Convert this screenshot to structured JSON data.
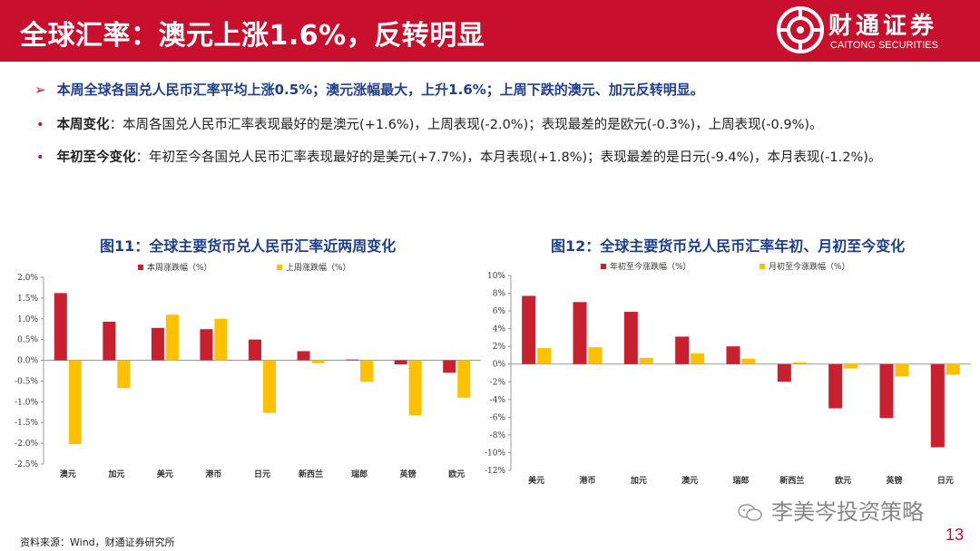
{
  "header": {
    "title": "全球汇率：澳元上涨1.6%，反转明显",
    "logo_cn": "财通证券",
    "logo_en": "CAITONG SECURITIES"
  },
  "summary": "本周全球各国兑人民币汇率平均上涨0.5%；澳元涨幅最大，上升1.6%；上周下跌的澳元、加元反转明显。",
  "bullets": [
    {
      "label": "本周变化",
      "text": "：本周各国兑人民币汇率表现最好的是澳元(+1.6%)，上周表现(-2.0%)；表现最差的是欧元(-0.3%)，上周表现(-0.9%)。"
    },
    {
      "label": "年初至今变化",
      "text": "：年初至今各国兑人民币汇率表现最好的是美元(+7.7%)，本月表现(+1.8%)；表现最差的是日元(-9.4%)，本月表现(-1.2%)。"
    }
  ],
  "colors": {
    "red": "#c8202e",
    "yellow": "#ffc000",
    "brand": "#c8102e",
    "title_blue": "#1f3e8c"
  },
  "chart_data": [
    {
      "type": "bar",
      "title": "图11：全球主要货币兑人民币汇率近两周变化",
      "categories": [
        "澳元",
        "加元",
        "美元",
        "港币",
        "日元",
        "新西兰",
        "瑞郎",
        "英镑",
        "欧元"
      ],
      "series": [
        {
          "name": "本周涨跌幅（%）",
          "values": [
            1.62,
            0.93,
            0.78,
            0.75,
            0.5,
            0.22,
            0.02,
            -0.1,
            -0.3
          ]
        },
        {
          "name": "上周涨跌幅（%）",
          "values": [
            -2.02,
            -0.67,
            1.1,
            1.0,
            -1.27,
            -0.07,
            -0.52,
            -1.33,
            -0.9
          ]
        }
      ],
      "ylim": [
        -2.5,
        2.0
      ],
      "yticks": [
        "2.0%",
        "1.5%",
        "1.0%",
        "0.5%",
        "0.0%",
        "-0.5%",
        "-1.0%",
        "-1.5%",
        "-2.0%",
        "-2.5%"
      ],
      "ytick_values": [
        2.0,
        1.5,
        1.0,
        0.5,
        0.0,
        -0.5,
        -1.0,
        -1.5,
        -2.0,
        -2.5
      ],
      "legend": "top-left",
      "grid": false
    },
    {
      "type": "bar",
      "title": "图12：全球主要货币兑人民币汇率年初、月初至今变化",
      "categories": [
        "美元",
        "港币",
        "加元",
        "澳元",
        "瑞郎",
        "新西兰",
        "欧元",
        "英镑",
        "日元"
      ],
      "series": [
        {
          "name": "年初至今涨跌幅（%）",
          "values": [
            7.7,
            7.0,
            5.9,
            3.1,
            2.0,
            -2.0,
            -5.0,
            -6.1,
            -9.4
          ]
        },
        {
          "name": "月初至今涨跌幅（%）",
          "values": [
            1.8,
            1.9,
            0.7,
            1.2,
            0.6,
            0.2,
            -0.5,
            -1.4,
            -1.2
          ]
        }
      ],
      "ylim": [
        -12,
        10
      ],
      "yticks": [
        "10%",
        "8%",
        "6%",
        "4%",
        "2%",
        "0%",
        "-2%",
        "-4%",
        "-6%",
        "-8%",
        "-10%",
        "-12%"
      ],
      "ytick_values": [
        10,
        8,
        6,
        4,
        2,
        0,
        -2,
        -4,
        -6,
        -8,
        -10,
        -12
      ],
      "legend": "top",
      "grid": false
    }
  ],
  "source": "资料来源：Wind，财通证券研究所",
  "watermark": "李美岑投资策略",
  "page_number": "13"
}
